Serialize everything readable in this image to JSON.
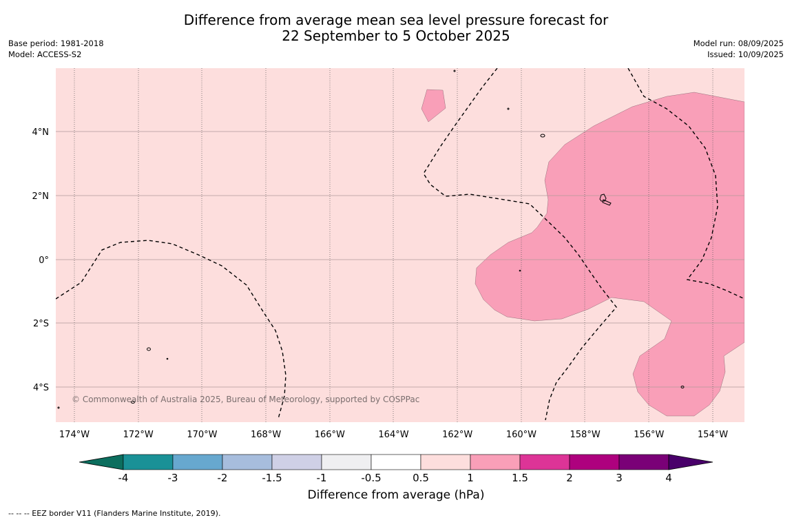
{
  "title": {
    "line1": "Difference from average mean sea level pressure forecast for",
    "line2": "22 September to 5 October 2025"
  },
  "meta": {
    "base_period": "Base period: 1981-2018",
    "model": "Model: ACCESS-S2",
    "model_run": "Model run: 08/09/2025",
    "issued": "Issued: 10/09/2025"
  },
  "map": {
    "copyright": "© Commonwealth of Australia 2025, Bureau of Meteorology, supported by COSPPac",
    "background_color": "#fddedd",
    "anomaly_color": "#f99fb8",
    "lat_labels": [
      "4°N",
      "2°N",
      "0°",
      "2°S",
      "4°S"
    ],
    "lon_labels": [
      "174°W",
      "172°W",
      "170°W",
      "168°W",
      "166°W",
      "164°W",
      "162°W",
      "160°W",
      "158°W",
      "156°W",
      "154°W"
    ]
  },
  "colorbar": {
    "title": "Difference from average (hPa)",
    "ticks": [
      "-4",
      "-3",
      "-2",
      "-1.5",
      "-1",
      "-0.5",
      "0.5",
      "1",
      "1.5",
      "2",
      "3",
      "4"
    ],
    "colors": [
      "#0c6e5e",
      "#1a9197",
      "#67a8cf",
      "#a7bddd",
      "#cfd0e6",
      "#efeff1",
      "#ffffff",
      "#fddedd",
      "#f99fb8",
      "#dd3497",
      "#ae017e",
      "#7a0177",
      "#49006a"
    ]
  },
  "footnote": "--  --  -- EEZ border V11 (Flanders Marine Institute, 2019)."
}
